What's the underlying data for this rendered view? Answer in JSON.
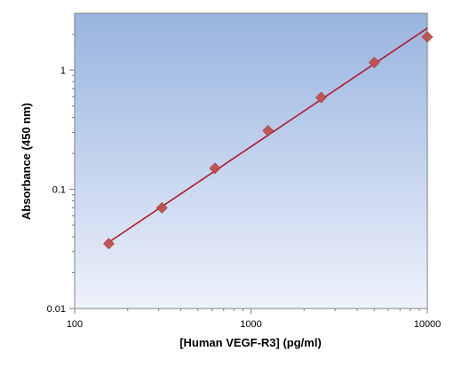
{
  "chart_data": {
    "type": "scatter",
    "title": "",
    "xlabel": "[Human VEGF-R3] (pg/ml)",
    "ylabel": "Absorbance (450 nm)",
    "x_scale": "log",
    "y_scale": "log",
    "xlim": [
      100,
      10000
    ],
    "ylim": [
      0.01,
      3
    ],
    "x_ticks": [
      {
        "value": 100,
        "label": "100"
      },
      {
        "value": 1000,
        "label": "1000"
      },
      {
        "value": 10000,
        "label": "10000"
      }
    ],
    "y_ticks": [
      {
        "value": 0.01,
        "label": "0.01"
      },
      {
        "value": 0.1,
        "label": "0.1"
      },
      {
        "value": 1,
        "label": "1"
      }
    ],
    "grid": false,
    "legend": "none",
    "series": [
      {
        "marker": "diamond",
        "color": "#c0504d",
        "x": [
          156.25,
          312.5,
          625,
          1250,
          2500,
          5000,
          10000
        ],
        "y": [
          0.035,
          0.07,
          0.15,
          0.31,
          0.59,
          1.16,
          1.9
        ]
      }
    ],
    "fit_line": {
      "color": "#b01c2e",
      "x": [
        156.25,
        10000
      ],
      "y": [
        0.036,
        2.25
      ]
    },
    "plot_background": {
      "top": "#98b4e0",
      "bottom": "#eef2fb"
    }
  }
}
